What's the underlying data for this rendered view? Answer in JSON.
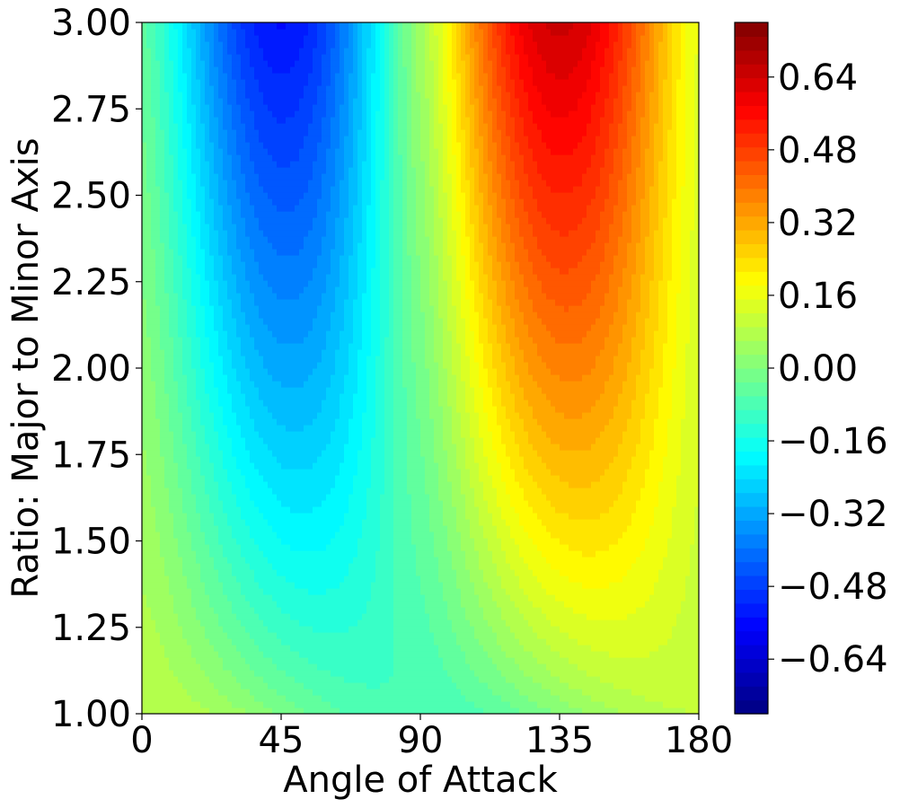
{
  "chart_data": {
    "type": "heatmap",
    "subtype": "filled-contour",
    "colormap": "jet",
    "xlabel": "Angle of Attack",
    "ylabel": "Ratio: Major to Minor Axis",
    "xlim": [
      0,
      180
    ],
    "ylim": [
      1.0,
      3.0
    ],
    "x_ticks": [
      0,
      45,
      90,
      135,
      180
    ],
    "x_tick_labels": [
      "0",
      "45",
      "90",
      "135",
      "180"
    ],
    "y_ticks": [
      1.0,
      1.25,
      1.5,
      1.75,
      2.0,
      2.25,
      2.5,
      2.75,
      3.0
    ],
    "y_tick_labels": [
      "1.00",
      "1.25",
      "1.50",
      "1.75",
      "2.00",
      "2.25",
      "2.50",
      "2.75",
      "3.00"
    ],
    "colorbar": {
      "range": [
        -0.76,
        0.76
      ],
      "ticks": [
        -0.64,
        -0.48,
        -0.32,
        -0.16,
        0.0,
        0.16,
        0.32,
        0.48,
        0.64
      ],
      "tick_labels": [
        "−0.64",
        "−0.48",
        "−0.32",
        "−0.16",
        "0.00",
        "0.16",
        "0.32",
        "0.48",
        "0.64"
      ],
      "levels": 50
    },
    "grid": false,
    "approx_field": {
      "description": "Approximately antisymmetric field with minimum near x≈40 and maximum near x≈140 at high ratio; magnitude grows with ratio.",
      "samples": [
        {
          "x": 40,
          "y": 3.0,
          "value": -0.74
        },
        {
          "x": 40,
          "y": 2.0,
          "value": -0.55
        },
        {
          "x": 40,
          "y": 1.5,
          "value": -0.33
        },
        {
          "x": 40,
          "y": 1.25,
          "value": -0.18
        },
        {
          "x": 140,
          "y": 3.0,
          "value": 0.75
        },
        {
          "x": 140,
          "y": 2.0,
          "value": 0.58
        },
        {
          "x": 140,
          "y": 1.5,
          "value": 0.38
        },
        {
          "x": 140,
          "y": 1.25,
          "value": 0.2
        },
        {
          "x": 0,
          "y": 1.0,
          "value": 0.06
        },
        {
          "x": 90,
          "y": 2.0,
          "value": 0.0
        },
        {
          "x": 180,
          "y": 1.0,
          "value": -0.02
        }
      ]
    }
  }
}
